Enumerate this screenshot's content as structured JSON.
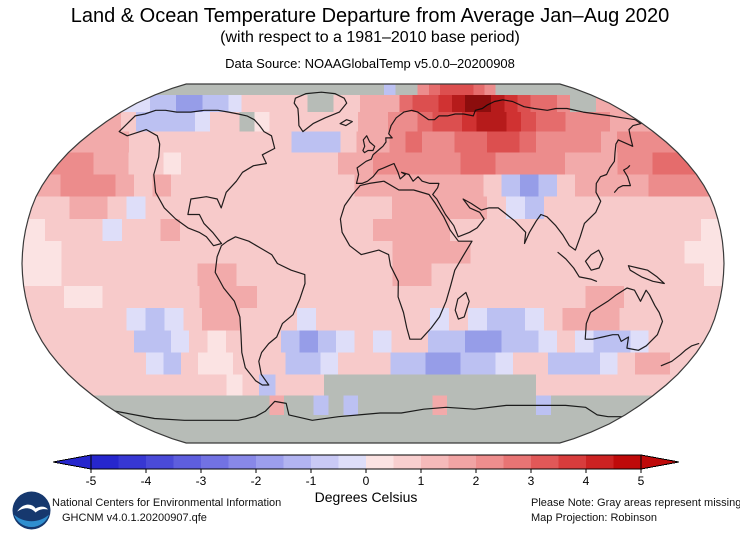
{
  "header": {
    "title": "Land & Ocean Temperature Departure from Average Jan–Aug 2020",
    "subtitle": "(with respect to a 1981–2010 base period)",
    "source": "Data Source: NOAAGlobalTemp v5.0.0–20200908"
  },
  "colorbar": {
    "label": "Degrees Celsius",
    "ticks": [
      "-5",
      "-4",
      "-3",
      "-2",
      "-1",
      "0",
      "1",
      "2",
      "3",
      "4",
      "5"
    ],
    "segment_colors": [
      "#2626cd",
      "#3737d3",
      "#4a4ad8",
      "#5e5ede",
      "#7272e3",
      "#8888e8",
      "#9c9eed",
      "#b2b4f1",
      "#c9c9f5",
      "#dedef9",
      "#fbe3e3",
      "#f8cfcf",
      "#f5baba",
      "#f1a4a4",
      "#ee8e8e",
      "#e87474",
      "#e15858",
      "#d83c3c",
      "#cc2222",
      "#bf0a0a"
    ]
  },
  "footer": {
    "org": "National Centers for Environmental Information",
    "dataset": "GHCNM v4.0.1.20200907.qfe",
    "note": "Please Note: Gray areas represent missing data",
    "projection": "Map Projection: Robinson",
    "logo_label": "NOAA"
  },
  "chart_data": {
    "type": "heatmap",
    "title": "Land & Ocean Temperature Departure from Average Jan–Aug 2020",
    "subtitle": "(with respect to a 1981–2010 base period)",
    "units": "Degrees Celsius",
    "value_range": [
      -5,
      5
    ],
    "projection": "Robinson",
    "cell_size_deg": 10,
    "lon_origin": -180,
    "lat_origin": 90,
    "palette": {
      "G": "#b7bcb7",
      "1": "#fbe3e3",
      "2": "#f7caca",
      "3": "#f2aaaa",
      "4": "#ec8c8c",
      "5": "#e56c6c",
      "6": "#dc4f4f",
      "7": "#d03232",
      "8": "#b61b1b",
      "9": "#8c0d0d",
      "a": "#dedef9",
      "b": "#bcc1f2",
      "c": "#969de8",
      "d": "#767ee0"
    },
    "code_values_degC": {
      "G": null,
      "a": -0.25,
      "b": -1.0,
      "c": -2.0,
      "d": -2.5,
      "1": 0.25,
      "2": 0.75,
      "3": 1.25,
      "4": 2.0,
      "5": 2.75,
      "6": 3.25,
      "7": 3.75,
      "8": 4.25,
      "9": 4.75
    },
    "rows": [
      "GGGGGGGGGGGGGGGGGGGbGG4566654GGGGGGG",
      "abbccbba22222GG223335667899876554GG3",
      "32bbbba22G12222223344566788765544433",
      "3332222222222bbb23345445566544443444",
      "443322122222222233444445544443334455",
      "3444323222222222233333332bcb23333444",
      "22332a2222222222222333332ab222222222",
      "1222a2232222222222333322222222222221",
      "112222222222222222233332222222222211",
      "112222222332222222233222222222222221",
      "221122222333222222222222222223322222",
      "22222aba233222a222222a2abba233322222",
      "22222bba21222bcba2a22bbccbba2abba222",
      "22222ab211222bba222bbccbba22bbba2332",
      "22222222212b222GGGGGGGGGGGGG22222222",
      "GGGGGGGGGGG3GGbGbGGGGG3GGGGGGbGGGGGG",
      "GGGGGGGGGGGGGGGGGGGGGGGGGGGGGGGGGGGG",
      "GGGGGGGGGGGGGGGGGGGGGGGGGGGGGGGGGGGG"
    ],
    "coastlines": [
      [
        [
          -166,
          68
        ],
        [
          -163,
          60
        ],
        [
          -155,
          58
        ],
        [
          -147,
          61
        ],
        [
          -136,
          58
        ],
        [
          -130,
          54
        ],
        [
          -125,
          48
        ],
        [
          -122,
          40
        ],
        [
          -117,
          32
        ],
        [
          -110,
          25
        ],
        [
          -103,
          20
        ],
        [
          -96,
          16
        ],
        [
          -90,
          14
        ],
        [
          -86,
          12
        ],
        [
          -82,
          8
        ],
        [
          -78,
          9
        ],
        [
          -83,
          14
        ],
        [
          -88,
          18
        ],
        [
          -91,
          22
        ],
        [
          -97,
          22
        ],
        [
          -97,
          29
        ],
        [
          -89,
          30
        ],
        [
          -83,
          29
        ],
        [
          -80,
          25
        ],
        [
          -79,
          32
        ],
        [
          -75,
          37
        ],
        [
          -73,
          41
        ],
        [
          -68,
          44
        ],
        [
          -61,
          45
        ],
        [
          -65,
          49
        ],
        [
          -59,
          52
        ],
        [
          -64,
          58
        ],
        [
          -70,
          60
        ],
        [
          -75,
          63
        ],
        [
          -81,
          66
        ],
        [
          -88,
          68
        ],
        [
          -95,
          69
        ],
        [
          -103,
          70
        ],
        [
          -112,
          71
        ],
        [
          -122,
          71
        ],
        [
          -130,
          70
        ],
        [
          -140,
          70
        ],
        [
          -150,
          71
        ],
        [
          -157,
          71
        ],
        [
          -161,
          69
        ],
        [
          -166,
          68
        ]
      ],
      [
        [
          -45,
          60
        ],
        [
          -40,
          64
        ],
        [
          -33,
          67
        ],
        [
          -24,
          70
        ],
        [
          -20,
          75
        ],
        [
          -23,
          78
        ],
        [
          -32,
          81
        ],
        [
          -44,
          82
        ],
        [
          -56,
          81
        ],
        [
          -62,
          78
        ],
        [
          -60,
          75
        ],
        [
          -55,
          72
        ],
        [
          -52,
          68
        ],
        [
          -49,
          63
        ],
        [
          -45,
          60
        ]
      ],
      [
        [
          -78,
          8
        ],
        [
          -80,
          3
        ],
        [
          -81,
          -4
        ],
        [
          -77,
          -11
        ],
        [
          -72,
          -17
        ],
        [
          -70,
          -24
        ],
        [
          -71,
          -32
        ],
        [
          -73,
          -40
        ],
        [
          -74,
          -47
        ],
        [
          -71,
          -53
        ],
        [
          -68,
          -55
        ],
        [
          -64,
          -55
        ],
        [
          -66,
          -50
        ],
        [
          -65,
          -44
        ],
        [
          -62,
          -40
        ],
        [
          -57,
          -36
        ],
        [
          -52,
          -33
        ],
        [
          -48,
          -27
        ],
        [
          -42,
          -23
        ],
        [
          -38,
          -16
        ],
        [
          -35,
          -9
        ],
        [
          -35,
          -5
        ],
        [
          -42,
          -3
        ],
        [
          -49,
          0
        ],
        [
          -52,
          4
        ],
        [
          -58,
          7
        ],
        [
          -64,
          10
        ],
        [
          -71,
          12
        ],
        [
          -75,
          10
        ],
        [
          -78,
          8
        ]
      ],
      [
        [
          -7,
          35
        ],
        [
          -11,
          31
        ],
        [
          -15,
          26
        ],
        [
          -17,
          20
        ],
        [
          -16,
          14
        ],
        [
          -12,
          8
        ],
        [
          -6,
          4
        ],
        [
          3,
          6
        ],
        [
          8,
          4
        ],
        [
          9,
          -1
        ],
        [
          13,
          -8
        ],
        [
          13,
          -15
        ],
        [
          16,
          -22
        ],
        [
          18,
          -29
        ],
        [
          20,
          -34
        ],
        [
          26,
          -34
        ],
        [
          31,
          -29
        ],
        [
          35,
          -24
        ],
        [
          38,
          -17
        ],
        [
          40,
          -10
        ],
        [
          42,
          -3
        ],
        [
          46,
          3
        ],
        [
          51,
          10
        ],
        [
          44,
          10
        ],
        [
          40,
          15
        ],
        [
          37,
          21
        ],
        [
          33,
          27
        ],
        [
          30,
          31
        ],
        [
          22,
          33
        ],
        [
          14,
          33
        ],
        [
          6,
          37
        ],
        [
          -2,
          36
        ],
        [
          -7,
          35
        ]
      ],
      [
        [
          -9,
          36
        ],
        [
          -8,
          40
        ],
        [
          -9,
          43
        ],
        [
          -4,
          46
        ],
        [
          -1,
          47
        ],
        [
          0,
          49
        ],
        [
          3,
          51
        ],
        [
          6,
          53
        ],
        [
          8,
          55
        ],
        [
          8,
          57
        ],
        [
          12,
          57
        ],
        [
          10,
          59
        ],
        [
          12,
          63
        ],
        [
          16,
          67
        ],
        [
          22,
          70
        ],
        [
          28,
          71
        ],
        [
          32,
          70
        ],
        [
          38,
          66
        ],
        [
          42,
          66
        ],
        [
          46,
          68
        ],
        [
          52,
          68
        ],
        [
          58,
          69
        ],
        [
          64,
          69
        ],
        [
          70,
          68
        ],
        [
          74,
          71
        ],
        [
          80,
          72
        ],
        [
          86,
          74
        ],
        [
          94,
          76
        ],
        [
          102,
          77
        ],
        [
          108,
          76
        ],
        [
          112,
          73
        ],
        [
          118,
          72
        ],
        [
          126,
          71
        ],
        [
          134,
          72
        ],
        [
          142,
          72
        ],
        [
          150,
          70
        ],
        [
          158,
          69
        ],
        [
          166,
          68
        ],
        [
          172,
          67
        ],
        [
          179,
          66
        ],
        [
          179,
          64
        ],
        [
          172,
          63
        ],
        [
          166,
          61
        ],
        [
          161,
          57
        ],
        [
          157,
          53
        ],
        [
          152,
          56
        ],
        [
          148,
          54
        ],
        [
          143,
          50
        ],
        [
          139,
          46
        ],
        [
          134,
          43
        ],
        [
          130,
          40
        ],
        [
          126,
          39
        ],
        [
          122,
          36
        ],
        [
          120,
          32
        ],
        [
          121,
          28
        ],
        [
          117,
          23
        ],
        [
          110,
          18
        ],
        [
          107,
          12
        ],
        [
          104,
          6
        ],
        [
          101,
          8
        ],
        [
          98,
          13
        ],
        [
          95,
          17
        ],
        [
          91,
          21
        ],
        [
          88,
          22
        ],
        [
          85,
          19
        ],
        [
          81,
          14
        ],
        [
          78,
          9
        ],
        [
          79,
          14
        ],
        [
          74,
          19
        ],
        [
          70,
          22
        ],
        [
          66,
          25
        ],
        [
          61,
          25
        ],
        [
          57,
          24
        ],
        [
          52,
          27
        ],
        [
          48,
          29
        ],
        [
          51,
          25
        ],
        [
          56,
          23
        ],
        [
          58,
          20
        ],
        [
          54,
          16
        ],
        [
          50,
          14
        ],
        [
          44,
          12
        ],
        [
          42,
          17
        ],
        [
          38,
          22
        ],
        [
          34,
          29
        ],
        [
          32,
          31
        ],
        [
          35,
          34
        ],
        [
          36,
          36
        ],
        [
          31,
          36
        ],
        [
          27,
          37
        ],
        [
          25,
          39
        ],
        [
          22,
          37
        ],
        [
          20,
          40
        ],
        [
          16,
          41
        ],
        [
          18,
          40
        ],
        [
          15,
          38
        ],
        [
          14,
          41
        ],
        [
          12,
          45
        ],
        [
          9,
          44
        ],
        [
          6,
          43
        ],
        [
          3,
          42
        ],
        [
          0,
          39
        ],
        [
          -3,
          37
        ],
        [
          -6,
          36
        ],
        [
          -9,
          36
        ]
      ],
      [
        [
          114,
          -22
        ],
        [
          113,
          -27
        ],
        [
          115,
          -34
        ],
        [
          119,
          -34
        ],
        [
          124,
          -33
        ],
        [
          129,
          -32
        ],
        [
          132,
          -32
        ],
        [
          135,
          -35
        ],
        [
          138,
          -33
        ],
        [
          140,
          -38
        ],
        [
          147,
          -39
        ],
        [
          150,
          -37
        ],
        [
          153,
          -32
        ],
        [
          153,
          -26
        ],
        [
          150,
          -22
        ],
        [
          147,
          -19
        ],
        [
          143,
          -14
        ],
        [
          141,
          -12
        ],
        [
          139,
          -17
        ],
        [
          135,
          -12
        ],
        [
          131,
          -11
        ],
        [
          126,
          -14
        ],
        [
          122,
          -17
        ],
        [
          117,
          -20
        ],
        [
          114,
          -22
        ]
      ],
      [
        [
          44,
          -16
        ],
        [
          48,
          -13
        ],
        [
          50,
          -17
        ],
        [
          48,
          -24
        ],
        [
          45,
          -25
        ],
        [
          43,
          -21
        ],
        [
          44,
          -16
        ]
      ],
      [
        [
          130,
          32
        ],
        [
          133,
          34
        ],
        [
          136,
          35
        ],
        [
          140,
          35
        ],
        [
          141,
          39
        ],
        [
          141,
          42
        ],
        [
          144,
          43
        ],
        [
          146,
          44
        ]
      ],
      [
        [
          -5,
          50
        ],
        [
          -3,
          51
        ],
        [
          0,
          51
        ],
        [
          1,
          53
        ],
        [
          -2,
          55
        ],
        [
          -4,
          58
        ],
        [
          -6,
          56
        ],
        [
          -5,
          53
        ],
        [
          -6,
          51
        ],
        [
          -5,
          50
        ]
      ],
      [
        [
          -22,
          64
        ],
        [
          -18,
          63
        ],
        [
          -14,
          65
        ],
        [
          -18,
          66
        ],
        [
          -22,
          64
        ]
      ],
      [
        [
          166,
          -46
        ],
        [
          170,
          -44
        ],
        [
          172,
          -41
        ],
        [
          173,
          -39
        ],
        [
          175,
          -37
        ],
        [
          178,
          -36
        ]
      ],
      [
        [
          131,
          -1
        ],
        [
          136,
          -2
        ],
        [
          141,
          -3
        ],
        [
          146,
          -6
        ],
        [
          150,
          -9
        ],
        [
          144,
          -8
        ],
        [
          138,
          -6
        ],
        [
          132,
          -3
        ],
        [
          131,
          -1
        ]
      ],
      [
        [
          109,
          1
        ],
        [
          112,
          4
        ],
        [
          116,
          6
        ],
        [
          118,
          2
        ],
        [
          116,
          -2
        ],
        [
          112,
          -3
        ],
        [
          109,
          1
        ]
      ],
      [
        [
          95,
          5
        ],
        [
          99,
          2
        ],
        [
          103,
          -2
        ],
        [
          106,
          -6
        ],
        [
          112,
          -7
        ],
        [
          115,
          -8
        ]
      ],
      [
        [
          -180,
          -68
        ],
        [
          -160,
          -72
        ],
        [
          -140,
          -73
        ],
        [
          -120,
          -73
        ],
        [
          -100,
          -73
        ],
        [
          -85,
          -71
        ],
        [
          -75,
          -68
        ],
        [
          -65,
          -63
        ],
        [
          -58,
          -64
        ],
        [
          -60,
          -70
        ],
        [
          -45,
          -73
        ],
        [
          -25,
          -71
        ],
        [
          -10,
          -70
        ],
        [
          5,
          -69
        ],
        [
          20,
          -69
        ],
        [
          35,
          -67
        ],
        [
          50,
          -66
        ],
        [
          70,
          -67
        ],
        [
          90,
          -65
        ],
        [
          110,
          -65
        ],
        [
          130,
          -65
        ],
        [
          145,
          -66
        ],
        [
          160,
          -70
        ],
        [
          170,
          -71
        ],
        [
          180,
          -71
        ]
      ]
    ]
  }
}
